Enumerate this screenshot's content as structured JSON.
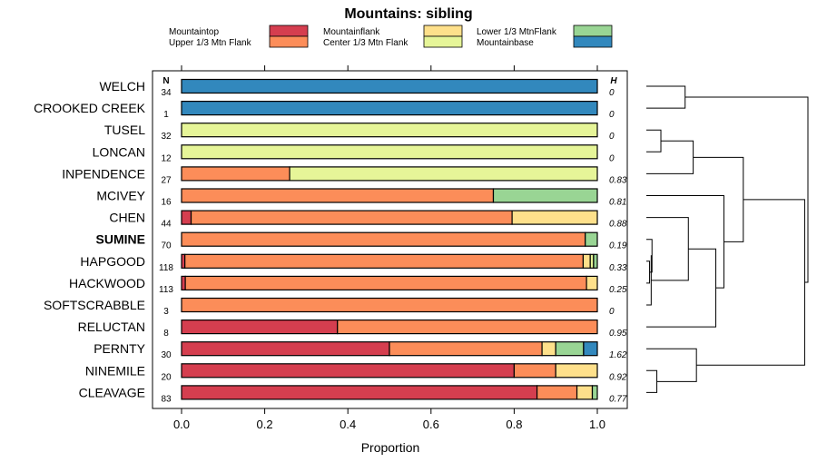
{
  "chart_data": {
    "type": "bar",
    "stacked": true,
    "orientation": "horizontal",
    "title": "Mountains: sibling",
    "xlabel": "Proportion",
    "xlim": [
      0,
      1
    ],
    "x_ticks": [
      "0.0",
      "0.2",
      "0.4",
      "0.6",
      "0.8",
      "1.0"
    ],
    "n_header": "N",
    "h_header": "H",
    "legend": [
      {
        "name": "Mountaintop",
        "color": "#d53e4f"
      },
      {
        "name": "Upper 1/3 Mtn Flank",
        "color": "#fc8d59"
      },
      {
        "name": "Mountainflank",
        "color": "#fee08b"
      },
      {
        "name": "Center 1/3 Mtn Flank",
        "color": "#e6f598"
      },
      {
        "name": "Lower 1/3 MtnFlank",
        "color": "#99d594"
      },
      {
        "name": "Mountainbase",
        "color": "#3288bd"
      }
    ],
    "categories": [
      "WELCH",
      "CROOKED CREEK",
      "TUSEL",
      "LONCAN",
      "INPENDENCE",
      "MCIVEY",
      "CHEN",
      "SUMINE",
      "HAPGOOD",
      "HACKWOOD",
      "SOFTSCRABBLE",
      "RELUCTAN",
      "PERNTY",
      "NINEMILE",
      "CLEAVAGE"
    ],
    "highlight": "SUMINE",
    "n": [
      "34",
      "1",
      "32",
      "12",
      "27",
      "16",
      "44",
      "70",
      "118",
      "113",
      "3",
      "8",
      "30",
      "20",
      "83"
    ],
    "h": [
      "0",
      "0",
      "0",
      "0",
      "0.83",
      "0.81",
      "0.88",
      "0.19",
      "0.33",
      "0.25",
      "0",
      "0.95",
      "1.62",
      "0.92",
      "0.77"
    ],
    "series": [
      {
        "name": "Mountaintop",
        "values": [
          0,
          0,
          0,
          0,
          0,
          0,
          0.023,
          0,
          0.008,
          0.009,
          0,
          0.375,
          0.5,
          0.8,
          0.855
        ]
      },
      {
        "name": "Upper 1/3 Mtn Flank",
        "values": [
          0,
          0,
          0,
          0,
          0.26,
          0.75,
          0.772,
          0.971,
          0.958,
          0.965,
          1,
          0.625,
          0.367,
          0.1,
          0.096
        ]
      },
      {
        "name": "Mountainflank",
        "values": [
          0,
          0,
          0,
          0,
          0,
          0,
          0.205,
          0,
          0.017,
          0.026,
          0,
          0,
          0.033,
          0.1,
          0.037
        ]
      },
      {
        "name": "Center 1/3 Mtn Flank",
        "values": [
          0,
          0,
          1,
          1,
          0.74,
          0,
          0,
          0,
          0.008,
          0,
          0,
          0,
          0,
          0,
          0
        ]
      },
      {
        "name": "Lower 1/3 MtnFlank",
        "values": [
          0,
          0,
          0,
          0,
          0,
          0.25,
          0,
          0.029,
          0.009,
          0,
          0,
          0,
          0.067,
          0,
          0.012
        ]
      },
      {
        "name": "Mountainbase",
        "values": [
          1,
          1,
          0,
          0,
          0,
          0,
          0,
          0,
          0,
          0,
          0,
          0,
          0.033,
          0,
          0
        ]
      }
    ],
    "dendrogram": {
      "orientation": "right",
      "leaf_order": [
        "WELCH",
        "CROOKED CREEK",
        "TUSEL",
        "LONCAN",
        "INPENDENCE",
        "MCIVEY",
        "CHEN",
        "SUMINE",
        "HAPGOOD",
        "HACKWOOD",
        "SOFTSCRABBLE",
        "RELUCTAN",
        "PERNTY",
        "NINEMILE",
        "CLEAVAGE"
      ],
      "merges": [
        {
          "a": "L0",
          "b": "L1",
          "height": 0.24
        },
        {
          "a": "L2",
          "b": "L3",
          "height": 0.09
        },
        {
          "a": "L8",
          "b": "L9",
          "height": 0.02
        },
        {
          "a": "L7",
          "b": "M2",
          "height": 0.035
        },
        {
          "a": "M3",
          "b": "L10",
          "height": 0.03
        },
        {
          "a": "L13",
          "b": "L14",
          "height": 0.065
        },
        {
          "a": "L12",
          "b": "M5",
          "height": 0.31
        },
        {
          "a": "L4",
          "b": "M1",
          "height": 0.29
        },
        {
          "a": "L6",
          "b": "M4",
          "height": 0.26
        },
        {
          "a": "M8",
          "b": "L11",
          "height": 0.43
        },
        {
          "a": "L5",
          "b": "M9",
          "height": 0.48
        },
        {
          "a": "M7",
          "b": "M10",
          "height": 0.6
        },
        {
          "a": "M11",
          "b": "M6",
          "height": 0.98
        },
        {
          "a": "M0",
          "b": "M12",
          "height": 1.0
        }
      ]
    }
  }
}
